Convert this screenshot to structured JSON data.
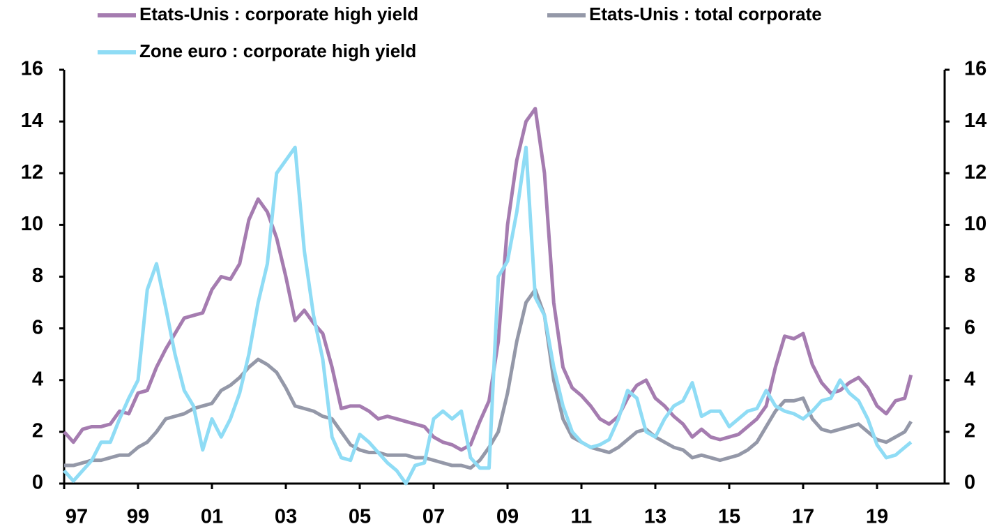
{
  "chart_data": {
    "type": "line",
    "x": [
      1997,
      1997.25,
      1997.5,
      1997.75,
      1998,
      1998.25,
      1998.5,
      1998.75,
      1999,
      1999.25,
      1999.5,
      1999.75,
      2000,
      2000.25,
      2000.5,
      2000.75,
      2001,
      2001.25,
      2001.5,
      2001.75,
      2002,
      2002.25,
      2002.5,
      2002.75,
      2003,
      2003.25,
      2003.5,
      2003.75,
      2004,
      2004.25,
      2004.5,
      2004.75,
      2005,
      2005.25,
      2005.5,
      2005.75,
      2006,
      2006.25,
      2006.5,
      2006.75,
      2007,
      2007.25,
      2007.5,
      2007.75,
      2008,
      2008.25,
      2008.5,
      2008.75,
      2009,
      2009.25,
      2009.5,
      2009.75,
      2010,
      2010.25,
      2010.5,
      2010.75,
      2011,
      2011.25,
      2011.5,
      2011.75,
      2012,
      2012.25,
      2012.5,
      2012.75,
      2013,
      2013.25,
      2013.5,
      2013.75,
      2014,
      2014.25,
      2014.5,
      2014.75,
      2015,
      2015.25,
      2015.5,
      2015.75,
      2016,
      2016.25,
      2016.5,
      2016.75,
      2017,
      2017.25,
      2017.5,
      2017.75,
      2018,
      2018.25,
      2018.5,
      2018.75,
      2019,
      2019.25,
      2019.5,
      2019.75,
      2019.92
    ],
    "series": [
      {
        "name": "Etats-Unis : corporate high yield",
        "color": "#a57cb0",
        "values": [
          2.0,
          1.6,
          2.1,
          2.2,
          2.2,
          2.3,
          2.8,
          2.7,
          3.5,
          3.6,
          4.5,
          5.2,
          5.8,
          6.4,
          6.5,
          6.6,
          7.5,
          8.0,
          7.9,
          8.5,
          10.2,
          11.0,
          10.5,
          9.5,
          8.0,
          6.3,
          6.7,
          6.2,
          5.8,
          4.5,
          2.9,
          3.0,
          3.0,
          2.8,
          2.5,
          2.6,
          2.5,
          2.4,
          2.3,
          2.2,
          1.8,
          1.6,
          1.5,
          1.3,
          1.5,
          2.4,
          3.2,
          5.5,
          10.0,
          12.5,
          14.0,
          14.5,
          12.0,
          7.0,
          4.5,
          3.7,
          3.4,
          3.0,
          2.5,
          2.3,
          2.6,
          3.3,
          3.8,
          4.0,
          3.3,
          3.0,
          2.6,
          2.3,
          1.8,
          2.1,
          1.8,
          1.7,
          1.8,
          1.9,
          2.2,
          2.5,
          3.0,
          4.5,
          5.7,
          5.6,
          5.8,
          4.6,
          3.9,
          3.5,
          3.6,
          3.9,
          4.1,
          3.7,
          3.0,
          2.7,
          3.2,
          3.3,
          4.2
        ]
      },
      {
        "name": "Etats-Unis : total corporate",
        "color": "#9498a8",
        "values": [
          0.7,
          0.7,
          0.8,
          0.9,
          0.9,
          1.0,
          1.1,
          1.1,
          1.4,
          1.6,
          2.0,
          2.5,
          2.6,
          2.7,
          2.9,
          3.0,
          3.1,
          3.6,
          3.8,
          4.1,
          4.5,
          4.8,
          4.6,
          4.3,
          3.7,
          3.0,
          2.9,
          2.8,
          2.6,
          2.5,
          2.0,
          1.5,
          1.3,
          1.2,
          1.2,
          1.1,
          1.1,
          1.1,
          1.0,
          1.0,
          0.9,
          0.8,
          0.7,
          0.7,
          0.6,
          0.9,
          1.4,
          2.0,
          3.5,
          5.5,
          7.0,
          7.5,
          6.5,
          4.0,
          2.5,
          1.8,
          1.6,
          1.4,
          1.3,
          1.2,
          1.4,
          1.7,
          2.0,
          2.1,
          1.8,
          1.6,
          1.4,
          1.3,
          1.0,
          1.1,
          1.0,
          0.9,
          1.0,
          1.1,
          1.3,
          1.6,
          2.2,
          2.8,
          3.2,
          3.2,
          3.3,
          2.5,
          2.1,
          2.0,
          2.1,
          2.2,
          2.3,
          2.0,
          1.7,
          1.6,
          1.8,
          2.0,
          2.4
        ]
      },
      {
        "name": "Zone euro : corporate high yield",
        "color": "#8fdcf5",
        "values": [
          0.5,
          0.1,
          0.5,
          0.9,
          1.6,
          1.6,
          2.5,
          3.3,
          4.0,
          7.5,
          8.5,
          6.8,
          5.0,
          3.6,
          3.0,
          1.3,
          2.5,
          1.8,
          2.5,
          3.5,
          5.0,
          7.0,
          8.5,
          12.0,
          12.5,
          13.0,
          9.0,
          6.5,
          4.8,
          1.8,
          1.0,
          0.9,
          1.9,
          1.6,
          1.2,
          0.8,
          0.5,
          0.0,
          0.7,
          0.8,
          2.5,
          2.8,
          2.5,
          2.8,
          1.0,
          0.6,
          0.6,
          8.0,
          8.6,
          10.5,
          13.0,
          7.2,
          6.5,
          4.5,
          3.0,
          2.0,
          1.6,
          1.4,
          1.5,
          1.7,
          2.5,
          3.6,
          3.3,
          2.0,
          1.8,
          2.5,
          3.0,
          3.2,
          3.9,
          2.6,
          2.8,
          2.8,
          2.2,
          2.5,
          2.8,
          2.9,
          3.6,
          3.0,
          2.8,
          2.7,
          2.5,
          2.8,
          3.2,
          3.3,
          4.0,
          3.5,
          3.2,
          2.5,
          1.5,
          1.0,
          1.1,
          1.4,
          1.6
        ]
      }
    ],
    "xlim": [
      1997,
      2020.83
    ],
    "xticks": [
      {
        "value": 1997,
        "label": "97"
      },
      {
        "value": 1999,
        "label": "99"
      },
      {
        "value": 2001,
        "label": "01"
      },
      {
        "value": 2003,
        "label": "03"
      },
      {
        "value": 2005,
        "label": "05"
      },
      {
        "value": 2007,
        "label": "07"
      },
      {
        "value": 2009,
        "label": "09"
      },
      {
        "value": 2011,
        "label": "11"
      },
      {
        "value": 2013,
        "label": "13"
      },
      {
        "value": 2015,
        "label": "15"
      },
      {
        "value": 2017,
        "label": "17"
      },
      {
        "value": 2019,
        "label": "19"
      }
    ],
    "ylim": [
      0,
      16
    ],
    "yticks": [
      0,
      2,
      4,
      6,
      8,
      10,
      12,
      14,
      16
    ],
    "y2lim": [
      0,
      16
    ],
    "y2ticks": [
      0,
      2,
      4,
      6,
      8,
      10,
      12,
      14,
      16
    ]
  }
}
